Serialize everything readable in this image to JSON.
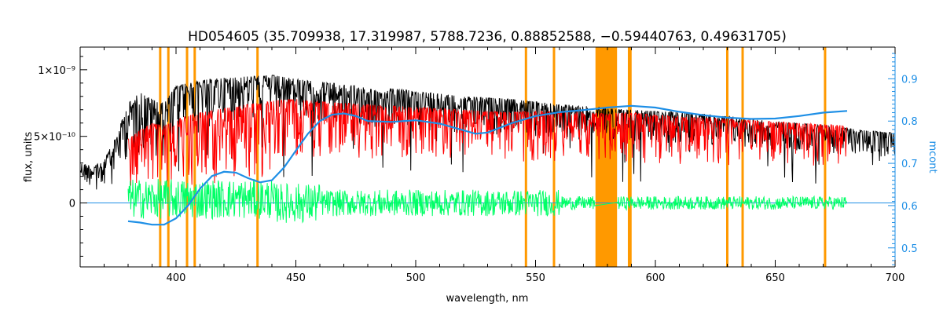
{
  "chart_data": {
    "type": "line",
    "title": "HD054605    (35.709938, 17.319987, 5788.7236, 0.88852588, −0.59440763, 0.49631705)",
    "xlabel": "wavelength, nm",
    "ylabel": "flux, units",
    "y2label": "mcont",
    "xlim": [
      360,
      700
    ],
    "ylim": [
      -4.8e-10,
      1.17e-09
    ],
    "y2lim": [
      0.455,
      0.975
    ],
    "x_ticks": [
      {
        "value": 400,
        "label": "400"
      },
      {
        "value": 450,
        "label": "450"
      },
      {
        "value": 500,
        "label": "500"
      },
      {
        "value": 550,
        "label": "550"
      },
      {
        "value": 600,
        "label": "600"
      },
      {
        "value": 650,
        "label": "650"
      },
      {
        "value": 700,
        "label": "700"
      }
    ],
    "y_ticks": [
      {
        "value": 0,
        "label": "0"
      },
      {
        "value": 5e-10,
        "label": "5×10⁻¹⁰"
      },
      {
        "value": 1e-09,
        "label": "1×10⁻⁹"
      }
    ],
    "y2_ticks": [
      {
        "value": 0.5,
        "label": "0.5"
      },
      {
        "value": 0.6,
        "label": "0.6"
      },
      {
        "value": 0.7,
        "label": "0.7"
      },
      {
        "value": 0.8,
        "label": "0.8"
      },
      {
        "value": 0.9,
        "label": "0.9"
      }
    ],
    "masked_regions": [
      {
        "x": 393.4
      },
      {
        "x": 396.8
      },
      {
        "x": 404.6
      },
      {
        "x": 407.8
      },
      {
        "x": 434.0
      },
      {
        "x": 546.0
      },
      {
        "x": 557.7
      },
      {
        "x": 630.0
      },
      {
        "x": 636.4
      },
      {
        "x": 670.8
      },
      {
        "x_range": [
          575.0,
          584.0
        ]
      },
      {
        "x": 589.0
      },
      {
        "x": 589.6
      }
    ],
    "series": [
      {
        "kind": "observed_flux",
        "color": "#000000",
        "x": [
          360,
          365,
          370,
          375,
          380,
          385,
          390,
          395,
          400,
          410,
          420,
          430,
          440,
          450,
          460,
          470,
          480,
          486,
          490,
          500,
          510,
          520,
          530,
          540,
          550,
          560,
          570,
          580,
          590,
          600,
          610,
          620,
          630,
          640,
          650,
          660,
          670,
          680,
          690,
          700
        ],
        "y": [
          3e-10,
          2.8e-10,
          3.2e-10,
          5e-10,
          7.5e-10,
          8.3e-10,
          7.8e-10,
          7.5e-10,
          8.8e-10,
          9.2e-10,
          9.4e-10,
          9.5e-10,
          9.6e-10,
          9.3e-10,
          9.1e-10,
          8.9e-10,
          8.7e-10,
          8.2e-10,
          8.6e-10,
          8.4e-10,
          8.2e-10,
          8e-10,
          7.9e-10,
          7.8e-10,
          7.6e-10,
          7.4e-10,
          7.3e-10,
          7.1e-10,
          7e-10,
          6.9e-10,
          6.8e-10,
          6.7e-10,
          6.5e-10,
          6.3e-10,
          6.1e-10,
          6e-10,
          5.8e-10,
          5.6e-10,
          5.4e-10,
          5.3e-10
        ]
      },
      {
        "kind": "model_flux",
        "color": "#ff0000",
        "x": [
          380,
          385,
          390,
          395,
          400,
          410,
          420,
          430,
          440,
          450,
          460,
          470,
          480,
          490,
          500,
          510,
          520,
          530,
          540,
          550,
          560,
          570,
          580,
          590,
          600,
          610,
          620,
          630,
          640,
          650,
          660,
          670,
          680
        ],
        "y": [
          4.8e-10,
          5.5e-10,
          6e-10,
          5.8e-10,
          6.3e-10,
          6.8e-10,
          7.1e-10,
          7.4e-10,
          7.7e-10,
          7.8e-10,
          7.6e-10,
          7.5e-10,
          7.4e-10,
          7.3e-10,
          7.2e-10,
          7.1e-10,
          7e-10,
          6.9e-10,
          6.8e-10,
          6.9e-10,
          6.8e-10,
          6.8e-10,
          6.7e-10,
          6.8e-10,
          6.6e-10,
          6.5e-10,
          6.4e-10,
          6.3e-10,
          6.2e-10,
          6.1e-10,
          6e-10,
          5.9e-10,
          5.8e-10
        ]
      },
      {
        "kind": "residuals",
        "color": "#00ff66",
        "x_range": [
          380,
          680
        ],
        "approx_level": 0.0
      },
      {
        "kind": "mcont",
        "axis": "right",
        "color": "#1e8fe6",
        "x": [
          380,
          385,
          390,
          395,
          400,
          405,
          410,
          415,
          420,
          425,
          430,
          435,
          440,
          445,
          450,
          455,
          460,
          465,
          470,
          475,
          480,
          490,
          500,
          510,
          520,
          525,
          530,
          540,
          550,
          560,
          570,
          580,
          590,
          600,
          610,
          620,
          630,
          640,
          650,
          660,
          670,
          680
        ],
        "y": [
          0.563,
          0.56,
          0.555,
          0.555,
          0.57,
          0.6,
          0.64,
          0.67,
          0.68,
          0.678,
          0.665,
          0.655,
          0.66,
          0.69,
          0.73,
          0.77,
          0.8,
          0.815,
          0.818,
          0.812,
          0.8,
          0.798,
          0.802,
          0.794,
          0.778,
          0.77,
          0.773,
          0.795,
          0.812,
          0.821,
          0.826,
          0.832,
          0.836,
          0.832,
          0.822,
          0.814,
          0.808,
          0.805,
          0.806,
          0.812,
          0.82,
          0.824
        ]
      }
    ]
  }
}
